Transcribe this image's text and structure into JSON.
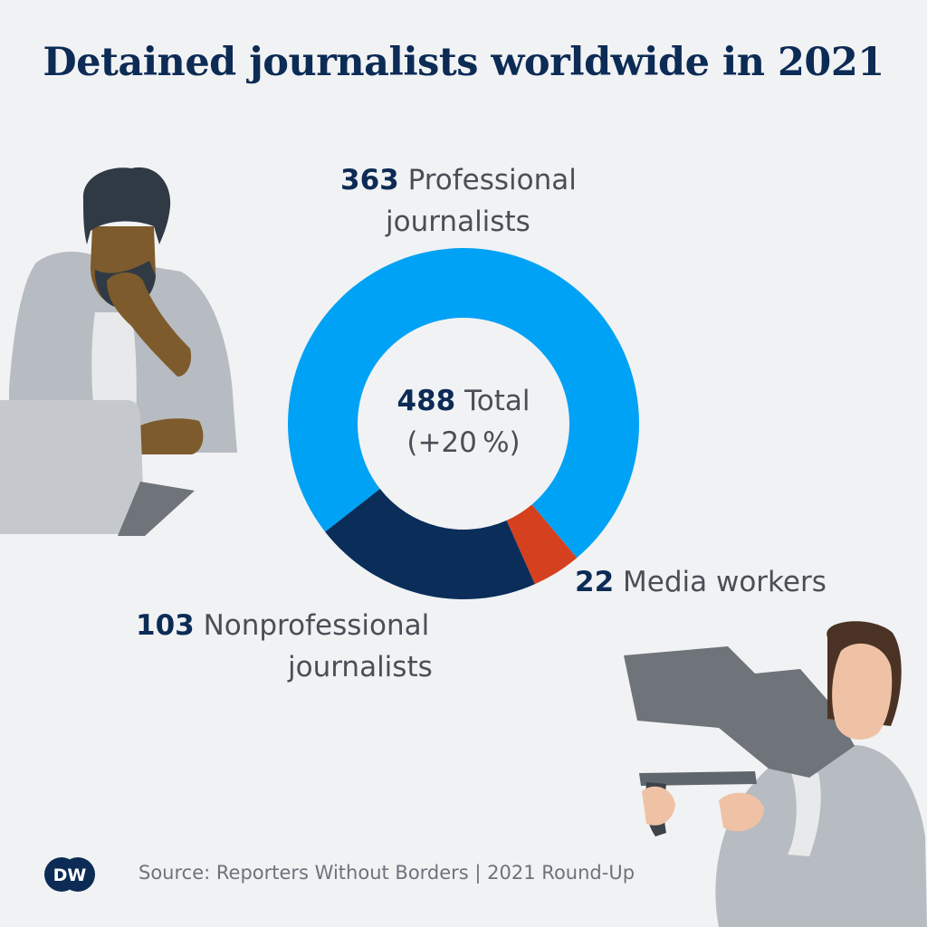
{
  "title": "Detained journalists worldwide in 2021",
  "center": {
    "total_value": "488",
    "total_label": "Total",
    "change": "(+20 %)"
  },
  "labels": {
    "professional": {
      "value": "363",
      "line1": "Professional",
      "line2": "journalists"
    },
    "media": {
      "value": "22",
      "text": "Media workers"
    },
    "nonprofessional": {
      "value": "103",
      "line1": "Nonprofessional",
      "line2": "journalists"
    }
  },
  "source": "Source: Reporters Without Borders | 2021 Round-Up",
  "logo_text": "DW",
  "colors": {
    "professional": "#00a2f5",
    "nonprofessional": "#0a2d5a",
    "media": "#d5401f",
    "background": "#f1f2f4",
    "title": "#0c2b55"
  },
  "chart_data": {
    "type": "pie",
    "donut": true,
    "title": "Detained journalists worldwide in 2021",
    "total": 488,
    "slices": [
      {
        "name": "Professional journalists",
        "value": 363,
        "color": "#00a2f5"
      },
      {
        "name": "Media workers",
        "value": 22,
        "color": "#d5401f"
      },
      {
        "name": "Nonprofessional journalists",
        "value": 103,
        "color": "#0a2d5a"
      }
    ]
  }
}
